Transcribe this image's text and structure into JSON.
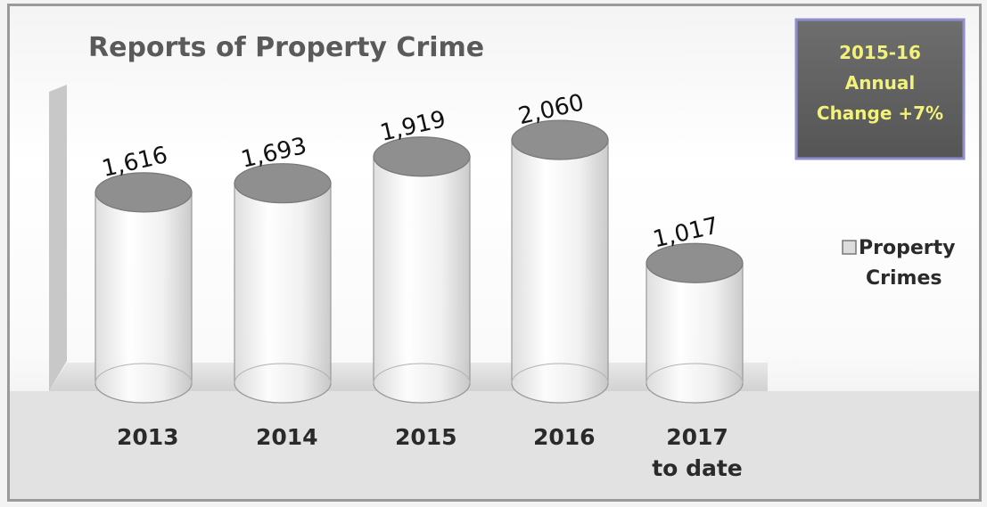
{
  "chart_data": {
    "type": "bar",
    "title": "Reports of Property Crime",
    "categories": [
      [
        "2013"
      ],
      [
        "2014"
      ],
      [
        "2015"
      ],
      [
        "2016"
      ],
      [
        "2017",
        "to date"
      ]
    ],
    "series": [
      {
        "name": "Property Crimes",
        "values": [
          1616,
          1693,
          1919,
          2060,
          1017
        ]
      }
    ],
    "value_labels": [
      "1,616",
      "1,693",
      "1,919",
      "2,060",
      "1,017"
    ],
    "legend": {
      "position": "right",
      "lines": [
        "Property",
        "Crimes"
      ]
    },
    "annotation": {
      "lines": [
        "2015-16",
        "Annual",
        "Change +7%"
      ],
      "position": "top-right"
    },
    "style": "3d-cylinder",
    "grid": false
  }
}
